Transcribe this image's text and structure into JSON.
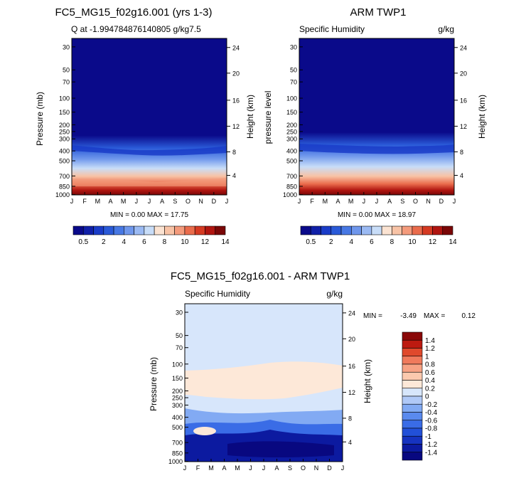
{
  "colors": {
    "panel_palette": [
      "#0a0a8a",
      "#1020a8",
      "#1a3cc8",
      "#2a5ad8",
      "#4778e4",
      "#6f97ec",
      "#9bbaf3",
      "#c8ddf8",
      "#fbe3d2",
      "#f8c3a6",
      "#f49b7c",
      "#ea6c4c",
      "#d53a22",
      "#b01510",
      "#7a0707"
    ],
    "diff_palette": [
      "#080880",
      "#0c1aa0",
      "#1633c0",
      "#2250d8",
      "#3a6ce6",
      "#5a8aee",
      "#82aaf3",
      "#b0c9f7",
      "#d7e6fb",
      "#fde8d8",
      "#fbc9ae",
      "#f7a284",
      "#f07a5c",
      "#e0492c",
      "#bd1a10",
      "#8a0808"
    ]
  },
  "chart_data": [
    {
      "type": "heatmap",
      "title": "FC5_MG15_f02g16.001 (yrs 1-3)",
      "subtitle_left": "Q at -1.994784876140805 g/kg7.5",
      "subtitle_right": "g/kg",
      "ylabel_left": "Pressure (mb)",
      "ylabel_right": "Height (km)",
      "x_ticks": [
        "J",
        "F",
        "M",
        "A",
        "M",
        "J",
        "J",
        "A",
        "S",
        "O",
        "N",
        "D",
        "J"
      ],
      "pressure_ticks": [
        "30",
        "50",
        "70",
        "100",
        "150",
        "200",
        "250",
        "300",
        "400",
        "500",
        "700",
        "850",
        "1000"
      ],
      "height_ticks": [
        "24",
        "20",
        "16",
        "12",
        "8",
        "4"
      ],
      "min_max": "MIN =    0.00 MAX =   17.75",
      "colorbar_labels": [
        "0.5",
        "2",
        "4",
        "6",
        "8",
        "10",
        "12",
        "14"
      ],
      "contour_levels": [
        0.5,
        1,
        2,
        3,
        4,
        5,
        6,
        7,
        8,
        9,
        10,
        11,
        12,
        13,
        14
      ]
    },
    {
      "type": "heatmap",
      "title": "ARM TWP1",
      "subtitle_left": "Specific Humidity",
      "subtitle_right": "g/kg",
      "ylabel_left": "pressure  level",
      "ylabel_right": "Height (km)",
      "x_ticks": [
        "J",
        "F",
        "M",
        "A",
        "M",
        "J",
        "J",
        "A",
        "S",
        "O",
        "N",
        "D",
        "J"
      ],
      "pressure_ticks": [
        "30",
        "50",
        "70",
        "100",
        "150",
        "200",
        "250",
        "300",
        "400",
        "500",
        "700",
        "850",
        "1000"
      ],
      "height_ticks": [
        "24",
        "20",
        "16",
        "12",
        "8",
        "4"
      ],
      "min_max": "MIN =    0.00 MAX =   18.97",
      "colorbar_labels": [
        "0.5",
        "2",
        "4",
        "6",
        "8",
        "10",
        "12",
        "14"
      ],
      "contour_levels": [
        0.5,
        1,
        2,
        3,
        4,
        5,
        6,
        7,
        8,
        9,
        10,
        11,
        12,
        13,
        14
      ]
    },
    {
      "type": "heatmap",
      "title": "FC5_MG15_f02g16.001 - ARM TWP1",
      "subtitle_left": "Specific Humidity",
      "subtitle_right": "g/kg",
      "ylabel_left": "Pressure (mb)",
      "ylabel_right": "Height (km)",
      "x_ticks": [
        "J",
        "F",
        "M",
        "A",
        "M",
        "J",
        "J",
        "A",
        "S",
        "O",
        "N",
        "D",
        "J"
      ],
      "pressure_ticks": [
        "30",
        "50",
        "70",
        "100",
        "150",
        "200",
        "250",
        "300",
        "400",
        "500",
        "700",
        "850",
        "1000"
      ],
      "height_ticks": [
        "24",
        "20",
        "16",
        "12",
        "8",
        "4"
      ],
      "min_label": "MIN =",
      "min_value": "-3.49",
      "max_label": "MAX =",
      "max_value": "0.12",
      "colorbar_labels": [
        "1.4",
        "1.2",
        "1",
        "0.8",
        "0.6",
        "0.4",
        "0.2",
        "0",
        "-0.2",
        "-0.4",
        "-0.6",
        "-0.8",
        "-1",
        "-1.2",
        "-1.4"
      ],
      "contour_levels": [
        -1.4,
        -1.2,
        -1,
        -0.8,
        -0.6,
        -0.4,
        -0.2,
        0,
        0.2,
        0.4,
        0.6,
        0.8,
        1,
        1.2,
        1.4
      ]
    }
  ]
}
